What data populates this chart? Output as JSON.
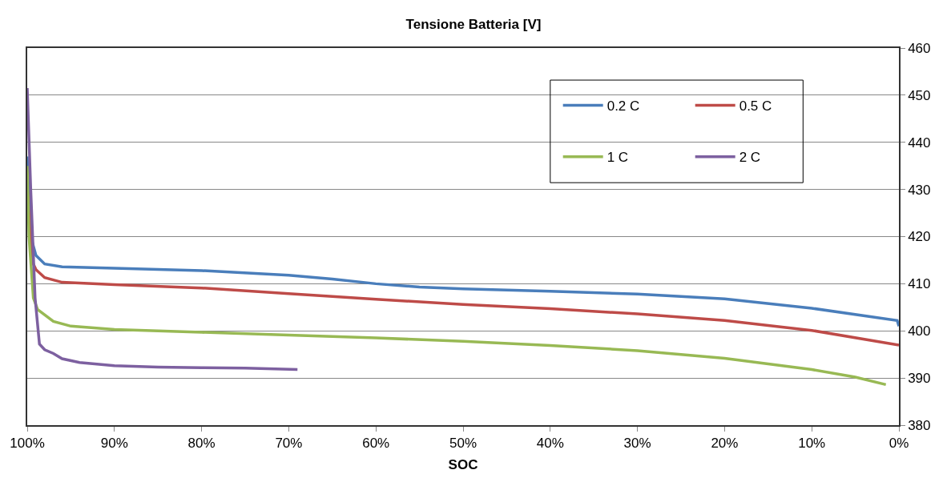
{
  "chart_data": {
    "type": "line",
    "title": "Tensione Batteria [V]",
    "xlabel": "SOC",
    "xlim": [
      100,
      0
    ],
    "xticks": [
      {
        "value": 100,
        "label": "100%"
      },
      {
        "value": 90,
        "label": "90%"
      },
      {
        "value": 80,
        "label": "80%"
      },
      {
        "value": 70,
        "label": "70%"
      },
      {
        "value": 60,
        "label": "60%"
      },
      {
        "value": 50,
        "label": "50%"
      },
      {
        "value": 40,
        "label": "40%"
      },
      {
        "value": 30,
        "label": "30%"
      },
      {
        "value": 20,
        "label": "20%"
      },
      {
        "value": 10,
        "label": "10%"
      },
      {
        "value": 0,
        "label": "0%"
      }
    ],
    "ylim": [
      380,
      460
    ],
    "yticks": [
      380,
      390,
      400,
      410,
      420,
      430,
      440,
      450,
      460
    ],
    "grid": "y",
    "legend": "top right",
    "marker": "none",
    "line_style": "solid",
    "series": [
      {
        "name": "0.2 C",
        "color": "#4a7ebb",
        "x": [
          100,
          99.6,
          99,
          98,
          96,
          90,
          80,
          70,
          65,
          60,
          55,
          50,
          40,
          30,
          20,
          10,
          0.2,
          0
        ],
        "values": [
          437,
          420,
          416,
          414.2,
          413.6,
          413.3,
          412.8,
          411.8,
          411,
          410,
          409.3,
          408.9,
          408.4,
          407.8,
          406.8,
          404.8,
          402.2,
          401
        ]
      },
      {
        "name": "0.5 C",
        "color": "#be4b48",
        "x": [
          100,
          99.5,
          99,
          98,
          96,
          90,
          80,
          70,
          60,
          50,
          40,
          30,
          20,
          10,
          0
        ],
        "values": [
          431,
          415,
          413,
          411.3,
          410.3,
          409.8,
          409.1,
          407.9,
          406.7,
          405.6,
          404.7,
          403.6,
          402.2,
          400.1,
          397
        ]
      },
      {
        "name": "1 C",
        "color": "#98b954",
        "x": [
          100,
          99.8,
          99.3,
          98.8,
          97,
          95,
          90,
          80,
          70,
          60,
          50,
          40,
          30,
          20,
          10,
          5,
          1.5
        ],
        "values": [
          435,
          420,
          407,
          404.5,
          402,
          401,
          400.3,
          399.7,
          399.1,
          398.5,
          397.8,
          396.9,
          395.8,
          394.2,
          391.8,
          390.2,
          388.6
        ]
      },
      {
        "name": "2 C",
        "color": "#7d60a0",
        "x": [
          100,
          99.6,
          99.1,
          98.6,
          98,
          97,
          96,
          94,
          90,
          85,
          80,
          75,
          69
        ],
        "values": [
          451.5,
          430,
          407,
          397.2,
          396,
          395.2,
          394.1,
          393.3,
          392.6,
          392.3,
          392.2,
          392.1,
          391.8
        ]
      }
    ]
  }
}
